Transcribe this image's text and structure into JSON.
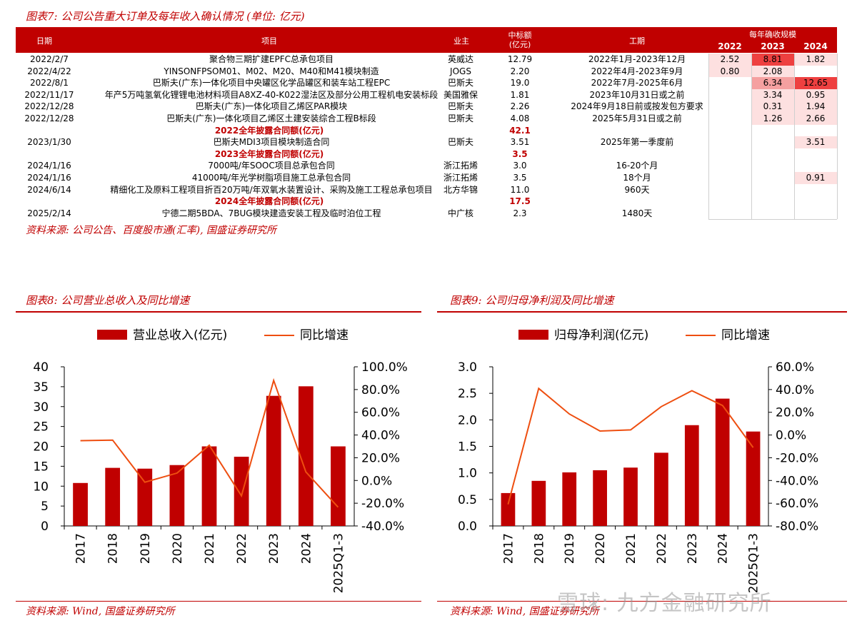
{
  "table": {
    "title": "图表7: 公司公告重大订单及每年收入确认情况 (单位: 亿元)",
    "headers": {
      "date": "日期",
      "project": "项目",
      "owner": "业主",
      "amount": "中标额\n(亿元)",
      "period": "工期",
      "recog": "每年确收规模"
    },
    "years": [
      "2022",
      "2023",
      "2024"
    ],
    "rows": [
      {
        "type": "row",
        "date": "2022/2/7",
        "project": "聚合物三期扩建EPFC总承包项目",
        "owner": "英威达",
        "amount": "12.79",
        "period": "2022年1月-2023年12月",
        "y2022": "2.52",
        "y2023": "8.81",
        "y2024": "1.82"
      },
      {
        "type": "row",
        "date": "2022/4/22",
        "project": "YINSONFPSOM01、M02、M20、M40和M41模块制造",
        "owner": "JOGS",
        "amount": "2.20",
        "period": "2022年4月-2023年9月",
        "y2022": "0.80",
        "y2023": "2.08",
        "y2024": ""
      },
      {
        "type": "row",
        "date": "2022/8/1",
        "project": "巴斯夫(广东)一体化项目中央罐区化学品罐区和装车站工程EPC",
        "owner": "巴斯夫",
        "amount": "19.0",
        "period": "2022年7月-2025年6月",
        "y2022": "",
        "y2023": "6.34",
        "y2024": "12.65"
      },
      {
        "type": "row",
        "date": "2022/11/17",
        "project": "年产5万吨氢氧化锂锂电池材料项目A8XZ-40-K022湿法区及部分公用工程机电安装标段",
        "owner": "美国雅保",
        "amount": "1.81",
        "period": "2023年10月31日或之前",
        "y2022": "",
        "y2023": "3.34",
        "y2024": "0.95"
      },
      {
        "type": "row",
        "date": "2022/12/28",
        "project": "巴斯夫(广东)一体化项目乙烯区PAR模块",
        "owner": "巴斯夫",
        "amount": "2.26",
        "period": "2024年9月18日前或按发包方要求",
        "y2022": "",
        "y2023": "0.31",
        "y2024": "1.94"
      },
      {
        "type": "row",
        "date": "2022/12/28",
        "project": "巴斯夫(广东)一体化项目乙烯区土建安装综合工程B标段",
        "owner": "巴斯夫",
        "amount": "4.08",
        "period": "2025年5月31日或之前",
        "y2022": "",
        "y2023": "1.26",
        "y2024": "2.66"
      },
      {
        "type": "sum",
        "label": "2022全年披露合同额(亿元)",
        "amount": "42.1"
      },
      {
        "type": "row",
        "date": "2023/1/30",
        "project": "巴斯夫MDI3项目模块制造合同",
        "owner": "巴斯夫",
        "amount": "3.51",
        "period": "2025年第一季度前",
        "y2022": "",
        "y2023": "",
        "y2024": "3.51"
      },
      {
        "type": "sum",
        "label": "2023全年披露合同额(亿元)",
        "amount": "3.5"
      },
      {
        "type": "row",
        "date": "2024/1/16",
        "project": "7000吨/年SOOC项目总承包合同",
        "owner": "浙江拓烯",
        "amount": "3.0",
        "period": "16-20个月",
        "y2022": "",
        "y2023": "",
        "y2024": ""
      },
      {
        "type": "row",
        "date": "2024/1/16",
        "project": "41000吨/年光学树脂项目施工总承包合同",
        "owner": "浙江拓烯",
        "amount": "3.5",
        "period": "18个月",
        "y2022": "",
        "y2023": "",
        "y2024": "0.91"
      },
      {
        "type": "row",
        "date": "2024/6/14",
        "project": "精细化工及原料工程项目折百20万吨/年双氧水装置设计、采购及施工工程总承包项目",
        "owner": "北方华锦",
        "amount": "11.0",
        "period": "960天",
        "y2022": "",
        "y2023": "",
        "y2024": ""
      },
      {
        "type": "sum",
        "label": "2024全年披露合同额(亿元)",
        "amount": "17.5"
      },
      {
        "type": "row",
        "date": "2025/2/14",
        "project": "宁德二期5BDA、7BUG模块建造安装工程及临时泊位工程",
        "owner": "中广核",
        "amount": "2.3",
        "period": "1480天",
        "y2022": "",
        "y2023": "",
        "y2024": ""
      }
    ],
    "source": "资料来源: 公司公告、百度股市通(汇率), 国盛证券研究所"
  },
  "chart8": {
    "title": "图表8: 公司营业总收入及同比增速",
    "source": "资料来源: Wind, 国盛证券研究所"
  },
  "chart9": {
    "title": "图表9: 公司归母净利润及同比增速",
    "source": "资料来源: Wind, 国盛证券研究所"
  },
  "watermark": "雪球: 九方金融研究所",
  "colors": {
    "accent": "#c00000",
    "bar": "#c00000",
    "line": "#ee4e10",
    "heat_strong": "#ee4040",
    "heat_mid": "#f5a0a0",
    "heat_light": "#fde0e0"
  },
  "chart_data": [
    {
      "type": "bar",
      "title": "",
      "categories": [
        "2017",
        "2018",
        "2019",
        "2020",
        "2021",
        "2022",
        "2023",
        "2024",
        "2025Q1-3"
      ],
      "series": [
        {
          "name": "营业总收入(亿元)",
          "type": "bar",
          "axis": "left",
          "values": [
            10.8,
            14.6,
            14.4,
            15.3,
            20.0,
            17.4,
            32.7,
            35.1,
            20.0
          ]
        },
        {
          "name": "同比增速",
          "type": "line",
          "axis": "right",
          "values": [
            35.0,
            35.5,
            -1.5,
            6.5,
            31.0,
            -13.5,
            88.0,
            7.5,
            -23.5
          ]
        }
      ],
      "ylim_left": [
        0,
        40
      ],
      "yticks_left": [
        "0",
        "5",
        "10",
        "15",
        "20",
        "25",
        "30",
        "35",
        "40"
      ],
      "ylim_right": [
        -40,
        100
      ],
      "yticks_right": [
        "-40.0%",
        "-20.0%",
        "0.0%",
        "20.0%",
        "40.0%",
        "60.0%",
        "80.0%",
        "100.0%"
      ],
      "legend_placement": "top"
    },
    {
      "type": "bar",
      "title": "",
      "categories": [
        "2017",
        "2018",
        "2019",
        "2020",
        "2021",
        "2022",
        "2023",
        "2024",
        "2025Q1-3"
      ],
      "series": [
        {
          "name": "归母净利润(亿元)",
          "type": "bar",
          "axis": "left",
          "values": [
            0.62,
            0.85,
            1.01,
            1.05,
            1.1,
            1.38,
            1.9,
            2.4,
            1.78
          ]
        },
        {
          "name": "同比增速",
          "type": "line",
          "axis": "right",
          "values": [
            -61.0,
            41.0,
            18.5,
            3.5,
            4.5,
            25.0,
            39.0,
            26.0,
            -11.0
          ]
        }
      ],
      "ylim_left": [
        0,
        3
      ],
      "yticks_left": [
        "0.0",
        "0.5",
        "1.0",
        "1.5",
        "2.0",
        "2.5",
        "3.0"
      ],
      "ylim_right": [
        -80,
        60
      ],
      "yticks_right": [
        "-80.0%",
        "-60.0%",
        "-40.0%",
        "-20.0%",
        "0.0%",
        "20.0%",
        "40.0%",
        "60.0%"
      ],
      "legend_placement": "top"
    }
  ]
}
